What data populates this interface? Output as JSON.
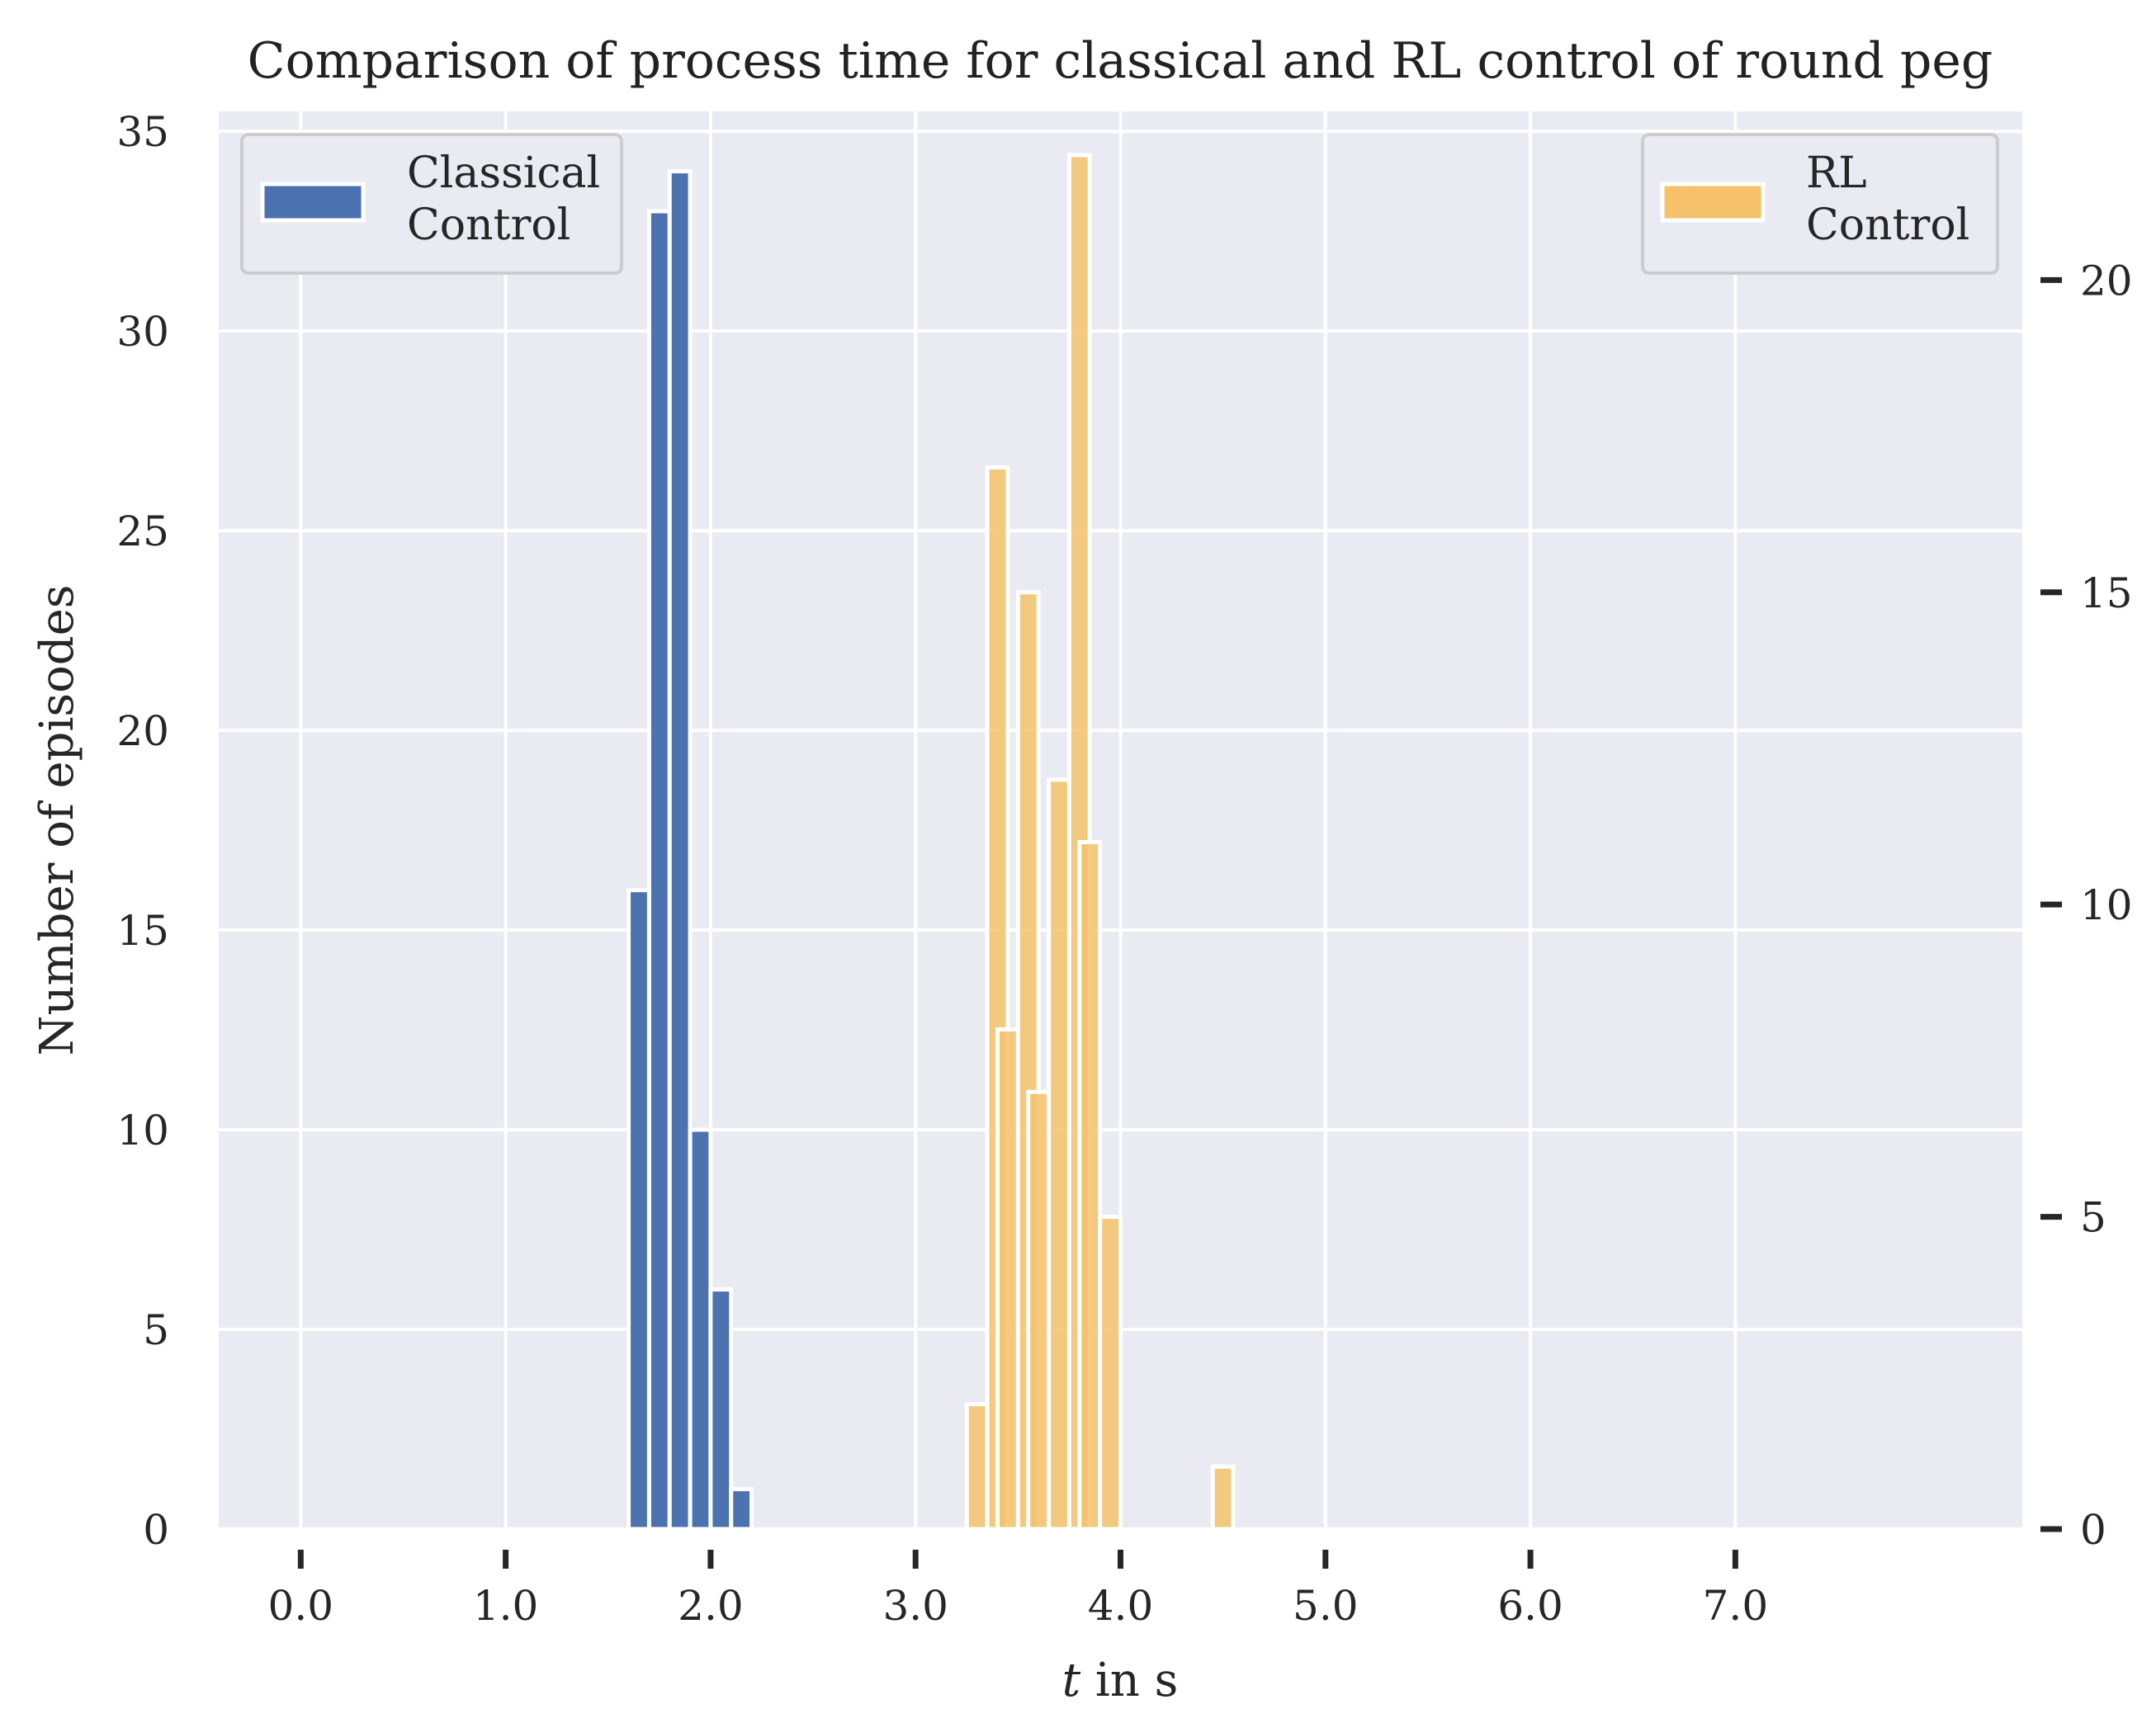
{
  "chart_data": {
    "type": "bar",
    "title": "Comparison of process time for classical and RL control of round peg",
    "xlabel_italic": "t",
    "xlabel_rest": " in s",
    "ylabel": "Number of episodes",
    "xlim": [
      -0.4,
      8.4
    ],
    "xticks": [
      0.0,
      1.0,
      2.0,
      3.0,
      4.0,
      5.0,
      6.0,
      7.0
    ],
    "xtick_labels": [
      "0.0",
      "1.0",
      "2.0",
      "3.0",
      "4.0",
      "5.0",
      "6.0",
      "7.0"
    ],
    "ylim_left": [
      0,
      35.5
    ],
    "yticks_left": [
      0,
      5,
      10,
      15,
      20,
      25,
      30,
      35
    ],
    "ylim_right": [
      0,
      22.7
    ],
    "yticks_right": [
      0,
      5,
      10,
      15,
      20
    ],
    "bin_width": 0.1,
    "grid": true,
    "series": [
      {
        "name": "Classical Control",
        "legend_lines": [
          "Classical",
          "Control"
        ],
        "axis": "left",
        "color": "#4c72b0",
        "legend_position": "top-left",
        "bins": [
          {
            "x": 1.65,
            "value": 16
          },
          {
            "x": 1.75,
            "value": 33
          },
          {
            "x": 1.85,
            "value": 34
          },
          {
            "x": 1.95,
            "value": 10
          },
          {
            "x": 2.05,
            "value": 6
          },
          {
            "x": 2.15,
            "value": 1
          }
        ]
      },
      {
        "name": "RL Control",
        "legend_lines": [
          "RL",
          "Control"
        ],
        "axis": "right",
        "color": "#f5c26b",
        "legend_position": "top-right",
        "bins": [
          {
            "x": 3.3,
            "value": 2
          },
          {
            "x": 3.4,
            "value": 17
          },
          {
            "x": 3.45,
            "value": 8
          },
          {
            "x": 3.55,
            "value": 15
          },
          {
            "x": 3.6,
            "value": 7
          },
          {
            "x": 3.7,
            "value": 12
          },
          {
            "x": 3.8,
            "value": 22
          },
          {
            "x": 3.85,
            "value": 11
          },
          {
            "x": 3.95,
            "value": 5
          },
          {
            "x": 4.5,
            "value": 1
          }
        ]
      }
    ]
  }
}
